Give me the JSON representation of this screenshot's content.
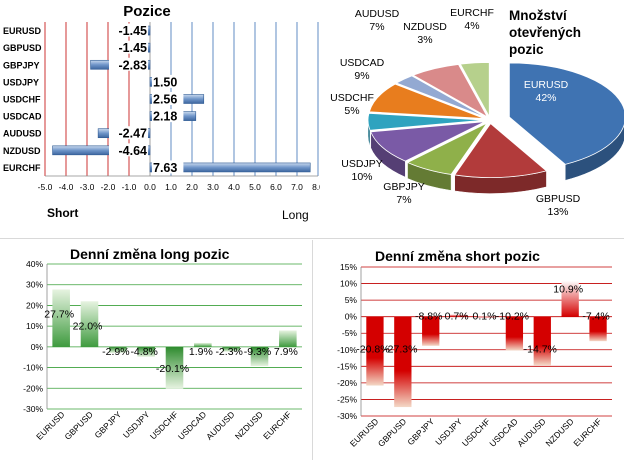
{
  "colors": {
    "bar_blue": "#4f81bd",
    "green_pos": "#2e8b2e",
    "green_neg": "#2e8b2e",
    "red_bar": "#d40000",
    "grid_red": "#c00000",
    "grid_green": "#3aa03a",
    "pie": [
      "#3f73b2",
      "#b23b3b",
      "#8fb04a",
      "#7a5aa6",
      "#2fa3bf",
      "#e87d1e",
      "#93a9d2",
      "#d98a8a",
      "#b6d08c"
    ]
  },
  "chart_data": [
    {
      "type": "bar",
      "orientation": "horizontal",
      "title": "Pozice",
      "categories": [
        "EURUSD",
        "GBPUSD",
        "GBPJPY",
        "USDJPY",
        "USDCHF",
        "USDCAD",
        "AUDUSD",
        "NZDUSD",
        "EURCHF"
      ],
      "values": [
        -1.45,
        -1.45,
        -2.83,
        1.5,
        2.56,
        2.18,
        -2.47,
        -4.64,
        7.63
      ],
      "value_labels": [
        "-1.45",
        "-1.45",
        "-2.83",
        "1.50",
        "2.56",
        "2.18",
        "-2.47",
        "-4.64",
        "7.63"
      ],
      "xlim": [
        -5.0,
        8.0
      ],
      "ticks": [
        "-5.0",
        "-4.0",
        "-3.0",
        "-2.0",
        "-1.0",
        "0.0",
        "1.0",
        "2.0",
        "3.0",
        "4.0",
        "5.0",
        "6.0",
        "7.0",
        "8.0"
      ],
      "left_label": "Short",
      "right_label": "Long",
      "grid": true
    },
    {
      "type": "pie",
      "title": "Množství otevřených pozic",
      "title_lines": [
        "Množství",
        "otevřených",
        "pozic"
      ],
      "slices": [
        {
          "name": "EURUSD",
          "value": 42,
          "label": "42%"
        },
        {
          "name": "GBPUSD",
          "value": 13,
          "label": "13%"
        },
        {
          "name": "GBPJPY",
          "value": 7,
          "label": "7%"
        },
        {
          "name": "USDJPY",
          "value": 10,
          "label": "10%"
        },
        {
          "name": "USDCHF",
          "value": 5,
          "label": "5%"
        },
        {
          "name": "USDCAD",
          "value": 9,
          "label": "9%"
        },
        {
          "name": "NZDUSD",
          "value": 3,
          "label": "3%"
        },
        {
          "name": "AUDUSD",
          "value": 7,
          "label": "7%"
        },
        {
          "name": "EURCHF",
          "value": 4,
          "label": "4%"
        }
      ]
    },
    {
      "type": "bar",
      "title": "Denní změna long pozic",
      "categories": [
        "EURUSD",
        "GBPUSD",
        "GBPJPY",
        "USDJPY",
        "USDCHF",
        "USDCAD",
        "AUDUSD",
        "NZDUSD",
        "EURCHF"
      ],
      "values": [
        27.7,
        22.0,
        -2.9,
        -4.8,
        -20.1,
        1.9,
        -2.3,
        -9.3,
        7.9
      ],
      "value_labels": [
        "27.7%",
        "22.0%",
        "-2.9%",
        "-4.8%",
        "-20.1%",
        "1.9%",
        "-2.3%",
        "-9.3%",
        "7.9%"
      ],
      "ylim": [
        -30,
        40
      ],
      "ticks": [
        "40%",
        "30%",
        "20%",
        "10%",
        "0%",
        "-10%",
        "-20%",
        "-30%"
      ],
      "grid": true
    },
    {
      "type": "bar",
      "title": "Denní změna short pozic",
      "categories": [
        "EURUSD",
        "GBPUSD",
        "GBPJPY",
        "USDJPY",
        "USDCHF",
        "USDCAD",
        "AUDUSD",
        "NZDUSD",
        "EURCHF"
      ],
      "values": [
        -20.8,
        -27.3,
        -8.8,
        0.7,
        0.1,
        -10.2,
        -14.7,
        10.9,
        -7.4
      ],
      "value_labels": [
        "-20.8%",
        "-27.3%",
        "-8.8%",
        "0.7%",
        "0.1%",
        "-10.2%",
        "-14.7%",
        "10.9%",
        "-7.4%"
      ],
      "ylim": [
        -30,
        15
      ],
      "ticks": [
        "15%",
        "10%",
        "5%",
        "0%",
        "-5%",
        "-10%",
        "-15%",
        "-20%",
        "-25%",
        "-30%"
      ],
      "grid": true
    }
  ]
}
